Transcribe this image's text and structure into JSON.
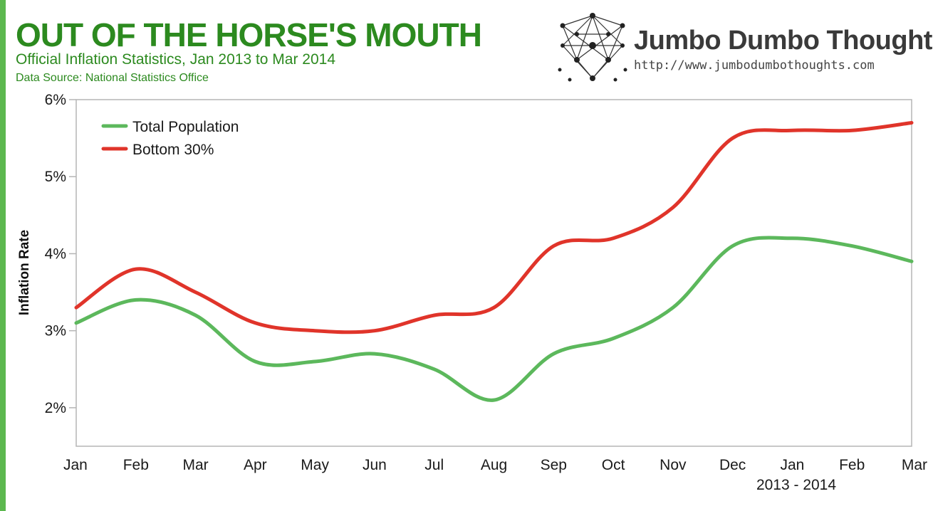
{
  "header": {
    "title": "OUT OF THE HORSE'S MOUTH",
    "subtitle": "Official Inflation Statistics, Jan 2013 to Mar 2014",
    "source": "Data Source: National Statistics Office"
  },
  "brand": {
    "name": "Jumbo Dumbo Thoughts",
    "url": "http://www.jumbodumbothoughts.com",
    "logo_icon": "network-dots-icon"
  },
  "chart_data": {
    "type": "line",
    "title": "OUT OF THE HORSE'S MOUTH",
    "subtitle": "Official Inflation Statistics, Jan 2013 to Mar 2014",
    "xlabel": "2013 - 2014",
    "ylabel": "Inflation Rate",
    "categories": [
      "Jan",
      "Feb",
      "Mar",
      "Apr",
      "May",
      "Jun",
      "Jul",
      "Aug",
      "Sep",
      "Oct",
      "Nov",
      "Dec",
      "Jan",
      "Feb",
      "Mar"
    ],
    "series": [
      {
        "name": "Total Population",
        "color": "#5cb85c",
        "values": [
          3.1,
          3.4,
          3.2,
          2.6,
          2.6,
          2.7,
          2.5,
          2.1,
          2.7,
          2.9,
          3.3,
          4.1,
          4.2,
          4.1,
          3.9
        ]
      },
      {
        "name": "Bottom 30%",
        "color": "#e0342a",
        "values": [
          3.3,
          3.8,
          3.5,
          3.1,
          3.0,
          3.0,
          3.2,
          3.3,
          4.1,
          4.2,
          4.6,
          5.5,
          5.6,
          5.6,
          5.7
        ]
      }
    ],
    "y_ticks": [
      "2%",
      "3%",
      "4%",
      "5%",
      "6%"
    ],
    "ylim": [
      1.5,
      6
    ],
    "grid": false,
    "legend": "top-left"
  }
}
